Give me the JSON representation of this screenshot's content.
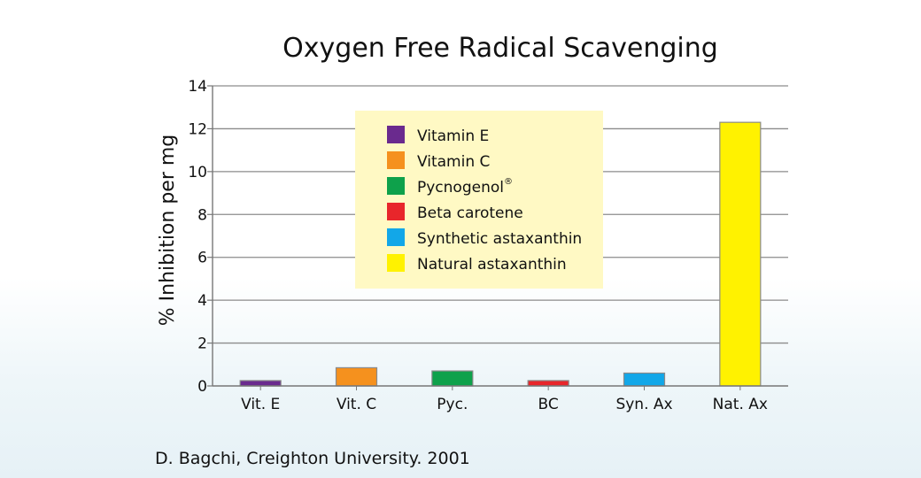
{
  "chart_data": {
    "type": "bar",
    "title": "Oxygen Free Radical Scavenging",
    "xlabel": "",
    "ylabel": "% Inhibition per mg",
    "categories": [
      "Vit. E",
      "Vit. C",
      "Pyc.",
      "BC",
      "Syn. Ax",
      "Nat. Ax"
    ],
    "values": [
      0.25,
      0.85,
      0.7,
      0.25,
      0.6,
      12.3
    ],
    "colors": [
      "#6a2a8e",
      "#f5911e",
      "#0ea14b",
      "#e8262b",
      "#12a7e8",
      "#fff200"
    ],
    "ylim": [
      0,
      14
    ],
    "yticks": [
      0,
      2,
      4,
      6,
      8,
      10,
      12,
      14
    ],
    "grid": true,
    "legend": {
      "placement": "upper-center",
      "entries": [
        {
          "label": "Vitamin E",
          "color": "#6a2a8e"
        },
        {
          "label": "Vitamin C",
          "color": "#f5911e"
        },
        {
          "label": "Pycnogenol",
          "color": "#0ea14b",
          "superscript": "®"
        },
        {
          "label": "Beta carotene",
          "color": "#e8262b"
        },
        {
          "label": "Synthetic astaxanthin",
          "color": "#12a7e8"
        },
        {
          "label": "Natural astaxanthin",
          "color": "#fff200"
        }
      ]
    }
  },
  "source": "D. Bagchi, Creighton University. 2001"
}
